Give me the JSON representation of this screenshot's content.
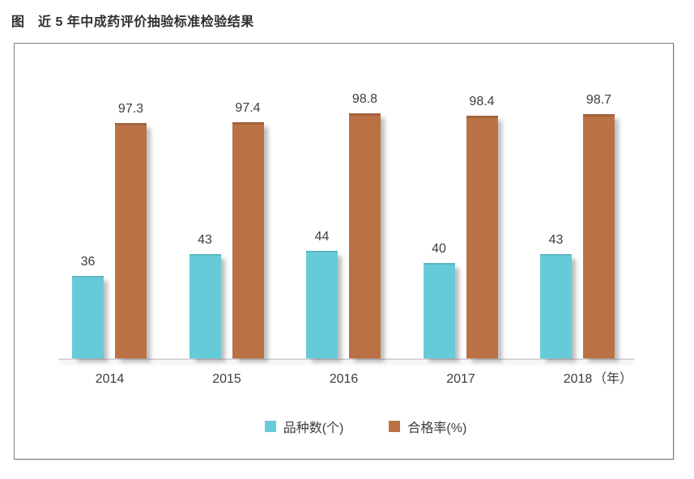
{
  "title": "图　近 5 年中成药评价抽验标准检验结果",
  "colors": {
    "bar_varieties": "#66CBD9",
    "bar_varieties_top_edge": "#54b9c9",
    "bar_pass_rate": "#BA7245",
    "bar_pass_rate_top_edge": "#a5633a",
    "text": "#3d3d3d",
    "axis_line": "#d6d6d6",
    "frame_border": "#7f7f7f"
  },
  "chart_data": {
    "type": "bar",
    "categories": [
      "2014",
      "2015",
      "2016",
      "2017",
      "2018"
    ],
    "x_axis_unit": "（年）",
    "series": [
      {
        "name": "品种数(个)",
        "key": "varieties",
        "color": "#66CBD9",
        "values": [
          36,
          43,
          44,
          40,
          43
        ]
      },
      {
        "name": "合格率(%)",
        "key": "pass-rate",
        "color": "#BA7245",
        "values": [
          97.3,
          97.4,
          98.8,
          98.4,
          98.7
        ]
      }
    ],
    "value_labels_shown": true,
    "grid": false,
    "legend_position": "bottom",
    "notes": "dual-axis style grouped bars: left series = count of varieties, right series = pass rate percent"
  }
}
